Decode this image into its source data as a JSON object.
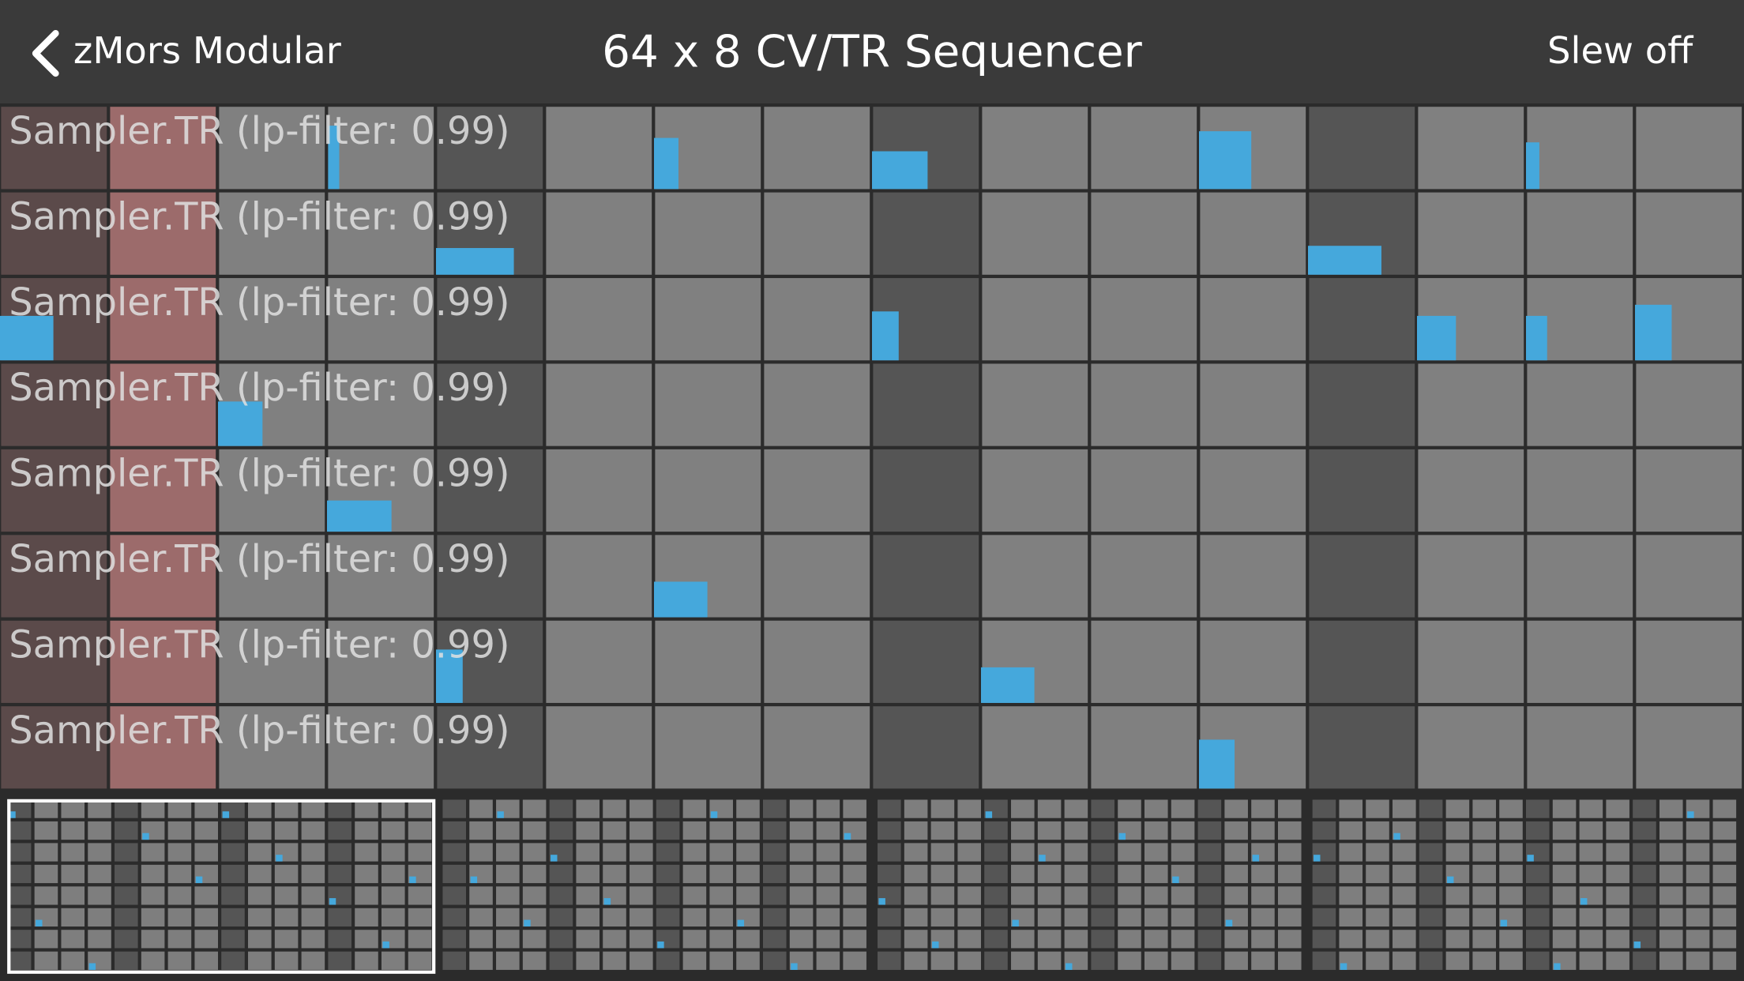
{
  "header": {
    "back_label": "zMors Modular",
    "title": "64 x 8 CV/TR Sequencer",
    "slew_button": "Slew off"
  },
  "tracks": [
    {
      "label": "Sampler.TR (lp-filter: 0.99)"
    },
    {
      "label": "Sampler.TR (lp-filter: 0.99)"
    },
    {
      "label": "Sampler.TR (lp-filter: 0.99)"
    },
    {
      "label": "Sampler.TR (lp-filter: 0.99)"
    },
    {
      "label": "Sampler.TR (lp-filter: 0.99)"
    },
    {
      "label": "Sampler.TR (lp-filter: 0.99)"
    },
    {
      "label": "Sampler.TR (lp-filter: 0.99)"
    },
    {
      "label": "Sampler.TR (lp-filter: 0.99)"
    }
  ]
}
